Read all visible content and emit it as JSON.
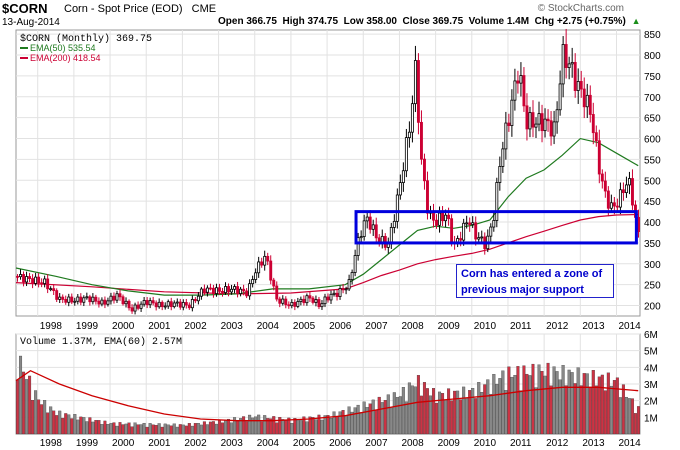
{
  "header": {
    "symbol": "$CORN",
    "name": "Corn - Spot Price (EOD)",
    "exchange": "CME",
    "date": "13-Aug-2014",
    "ohlc_text": "Open 366.75  High 374.75  Low 358.00  Close 369.75  Volume 1.4M  Chg +2.75 (+0.75%)",
    "chg_indicator": "triangle-up-icon",
    "copyright": "© StockCharts.com"
  },
  "price_legend": {
    "main": "$CORN (Monthly) 369.75",
    "ema50": "EMA(50) 535.54",
    "ema200": "EMA(200) 418.54"
  },
  "volume_legend": "Volume 1.37M, EMA(60) 2.57M",
  "annotation": "Corn has entered a zone of previous major support",
  "colors": {
    "up": "#000000",
    "down": "#cc0033",
    "ema50": "#1f7a1f",
    "ema200": "#cc0033",
    "vol_up": "#888888",
    "vol_down": "#cc3344",
    "annotation": "#0000cc"
  },
  "chart_data": [
    {
      "type": "line",
      "subtype": "candlestick-monthly",
      "title": "$CORN (Monthly) 369.75",
      "ylim": [
        175,
        860
      ],
      "y_ticks": [
        200,
        250,
        300,
        350,
        400,
        450,
        500,
        550,
        600,
        650,
        700,
        750,
        800,
        850
      ],
      "x_ticks": [
        "1998",
        "1999",
        "2000",
        "2001",
        "2002",
        "2003",
        "2004",
        "2005",
        "2006",
        "2007",
        "2008",
        "2009",
        "2010",
        "2011",
        "2012",
        "2013",
        "2014"
      ],
      "x_range": [
        1997.4,
        2014.65
      ],
      "grid": true,
      "close_series": [
        [
          1997.4,
          270
        ],
        [
          1997.8,
          262
        ],
        [
          1998.2,
          255
        ],
        [
          1998.6,
          215
        ],
        [
          1999.0,
          212
        ],
        [
          1999.4,
          218
        ],
        [
          1999.8,
          205
        ],
        [
          2000.2,
          225
        ],
        [
          2000.6,
          190
        ],
        [
          2001.0,
          210
        ],
        [
          2001.4,
          200
        ],
        [
          2001.8,
          205
        ],
        [
          2002.2,
          200
        ],
        [
          2002.6,
          240
        ],
        [
          2003.0,
          235
        ],
        [
          2003.4,
          240
        ],
        [
          2003.8,
          230
        ],
        [
          2004.0,
          280
        ],
        [
          2004.3,
          320
        ],
        [
          2004.6,
          215
        ],
        [
          2005.0,
          200
        ],
        [
          2005.5,
          220
        ],
        [
          2005.8,
          200
        ],
        [
          2006.0,
          220
        ],
        [
          2006.3,
          230
        ],
        [
          2006.6,
          250
        ],
        [
          2006.9,
          370
        ],
        [
          2007.1,
          410
        ],
        [
          2007.4,
          360
        ],
        [
          2007.7,
          345
        ],
        [
          2008.0,
          480
        ],
        [
          2008.3,
          640
        ],
        [
          2008.45,
          770
        ],
        [
          2008.6,
          550
        ],
        [
          2008.8,
          420
        ],
        [
          2009.0,
          400
        ],
        [
          2009.3,
          420
        ],
        [
          2009.5,
          340
        ],
        [
          2009.7,
          370
        ],
        [
          2009.9,
          410
        ],
        [
          2010.1,
          370
        ],
        [
          2010.4,
          345
        ],
        [
          2010.6,
          410
        ],
        [
          2010.8,
          560
        ],
        [
          2011.0,
          640
        ],
        [
          2011.3,
          770
        ],
        [
          2011.5,
          640
        ],
        [
          2011.8,
          640
        ],
        [
          2012.0,
          640
        ],
        [
          2012.3,
          620
        ],
        [
          2012.5,
          800
        ],
        [
          2012.7,
          780
        ],
        [
          2012.9,
          730
        ],
        [
          2013.1,
          700
        ],
        [
          2013.3,
          660
        ],
        [
          2013.5,
          540
        ],
        [
          2013.7,
          460
        ],
        [
          2013.9,
          430
        ],
        [
          2014.1,
          460
        ],
        [
          2014.3,
          500
        ],
        [
          2014.4,
          480
        ],
        [
          2014.5,
          420
        ],
        [
          2014.6,
          370
        ]
      ],
      "ema50_series": [
        [
          1997.4,
          290
        ],
        [
          1998.5,
          270
        ],
        [
          1999.5,
          250
        ],
        [
          2000.5,
          235
        ],
        [
          2001.5,
          225
        ],
        [
          2002.5,
          225
        ],
        [
          2003.5,
          228
        ],
        [
          2004.5,
          240
        ],
        [
          2005.5,
          240
        ],
        [
          2006.5,
          250
        ],
        [
          2007.0,
          275
        ],
        [
          2007.5,
          310
        ],
        [
          2008.0,
          345
        ],
        [
          2008.5,
          380
        ],
        [
          2009.0,
          390
        ],
        [
          2009.5,
          385
        ],
        [
          2010.0,
          392
        ],
        [
          2010.5,
          405
        ],
        [
          2011.0,
          460
        ],
        [
          2011.5,
          505
        ],
        [
          2012.0,
          525
        ],
        [
          2012.5,
          560
        ],
        [
          2013.0,
          600
        ],
        [
          2013.5,
          590
        ],
        [
          2014.0,
          565
        ],
        [
          2014.6,
          535
        ]
      ],
      "ema200_series": [
        [
          1997.4,
          255
        ],
        [
          1999.5,
          245
        ],
        [
          2001.5,
          233
        ],
        [
          2003.5,
          228
        ],
        [
          2005.0,
          230
        ],
        [
          2006.5,
          240
        ],
        [
          2007.0,
          255
        ],
        [
          2007.5,
          272
        ],
        [
          2008.0,
          285
        ],
        [
          2008.5,
          300
        ],
        [
          2009.0,
          310
        ],
        [
          2009.5,
          318
        ],
        [
          2010.0,
          325
        ],
        [
          2010.5,
          335
        ],
        [
          2011.0,
          350
        ],
        [
          2011.5,
          365
        ],
        [
          2012.0,
          378
        ],
        [
          2012.5,
          392
        ],
        [
          2013.0,
          405
        ],
        [
          2013.5,
          413
        ],
        [
          2014.0,
          417
        ],
        [
          2014.6,
          418
        ]
      ],
      "support_zone": {
        "x": [
          2006.8,
          2014.55
        ],
        "y": [
          350,
          425
        ]
      }
    },
    {
      "type": "bar",
      "title": "Volume 1.37M, EMA(60) 2.57M",
      "ylabel": "",
      "ylim": [
        0,
        6
      ],
      "y_ticks": [
        "1M",
        "2M",
        "3M",
        "4M",
        "5M",
        "6M"
      ],
      "x_ticks": [
        "1998",
        "1999",
        "2000",
        "2001",
        "2002",
        "2003",
        "2004",
        "2005",
        "2006",
        "2007",
        "2008",
        "2009",
        "2010",
        "2011",
        "2012",
        "2013",
        "2014"
      ],
      "volume_profile_millions": [
        [
          1997.4,
          4.5
        ],
        [
          1998.0,
          2.0
        ],
        [
          1998.5,
          1.2
        ],
        [
          2000.0,
          0.6
        ],
        [
          2002.0,
          0.5
        ],
        [
          2003.0,
          0.7
        ],
        [
          2004.0,
          1.0
        ],
        [
          2005.0,
          0.8
        ],
        [
          2006.0,
          1.0
        ],
        [
          2007.0,
          1.6
        ],
        [
          2008.0,
          2.2
        ],
        [
          2008.5,
          3.0
        ],
        [
          2009.0,
          2.2
        ],
        [
          2010.0,
          2.4
        ],
        [
          2011.0,
          3.4
        ],
        [
          2012.0,
          3.6
        ],
        [
          2013.0,
          3.3
        ],
        [
          2014.0,
          3.0
        ],
        [
          2014.6,
          1.4
        ]
      ],
      "ema60_series_millions": [
        [
          1997.4,
          3.2
        ],
        [
          1997.8,
          3.8
        ],
        [
          1998.6,
          3.0
        ],
        [
          1999.5,
          2.3
        ],
        [
          2000.5,
          1.7
        ],
        [
          2001.5,
          1.2
        ],
        [
          2002.5,
          0.9
        ],
        [
          2003.5,
          0.8
        ],
        [
          2004.5,
          0.8
        ],
        [
          2005.5,
          0.9
        ],
        [
          2006.5,
          1.1
        ],
        [
          2007.5,
          1.5
        ],
        [
          2008.5,
          1.9
        ],
        [
          2009.5,
          2.1
        ],
        [
          2010.5,
          2.3
        ],
        [
          2011.5,
          2.6
        ],
        [
          2012.5,
          2.8
        ],
        [
          2013.5,
          2.8
        ],
        [
          2014.6,
          2.6
        ]
      ]
    }
  ]
}
